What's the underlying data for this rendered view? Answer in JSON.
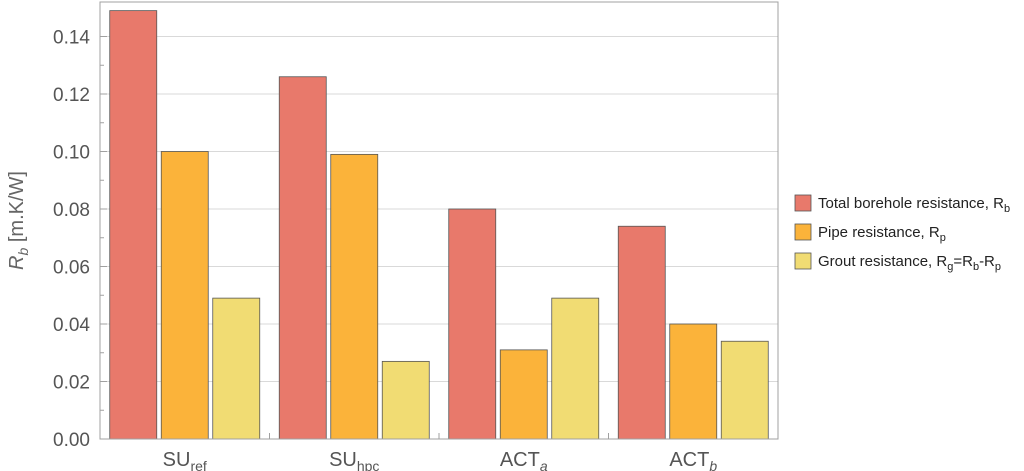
{
  "chart_data": {
    "type": "bar",
    "title": "",
    "ylabel": {
      "symbol": "R",
      "sub": "b",
      "unit": " [m.K/W]"
    },
    "ylim": [
      0,
      0.152
    ],
    "yticks": [
      "0.00",
      "0.02",
      "0.04",
      "0.06",
      "0.08",
      "0.10",
      "0.12",
      "0.14"
    ],
    "ytick_values": [
      0,
      0.02,
      0.04,
      0.06,
      0.08,
      0.1,
      0.12,
      0.14
    ],
    "grid": true,
    "legend_position": "right",
    "categories": [
      {
        "base": "SU",
        "sub": "ref",
        "italic_sub": false
      },
      {
        "base": "SU",
        "sub": "hpc",
        "italic_sub": false
      },
      {
        "base": "ACT",
        "sub": "a",
        "italic_sub": true
      },
      {
        "base": "ACT",
        "sub": "b",
        "italic_sub": true
      }
    ],
    "series": [
      {
        "name": "Total borehole resistance, R_b",
        "legend": [
          [
            "Total borehole resistance, R",
            ""
          ],
          [
            "b",
            "sub"
          ]
        ],
        "color": "#E8796B",
        "values": [
          0.149,
          0.126,
          0.08,
          0.074
        ]
      },
      {
        "name": "Pipe resistance, R_p",
        "legend": [
          [
            "Pipe resistance, R",
            ""
          ],
          [
            "p",
            "sub"
          ]
        ],
        "color": "#FBB33A",
        "values": [
          0.1,
          0.099,
          0.031,
          0.04
        ]
      },
      {
        "name": "Grout resistance, R_g=R_b-R_p",
        "legend": [
          [
            "Grout resistance, R",
            ""
          ],
          [
            "g",
            "sub"
          ],
          [
            "=R",
            ""
          ],
          [
            "b",
            "sub"
          ],
          [
            "-R",
            ""
          ],
          [
            "p",
            "sub"
          ]
        ],
        "color": "#F1DC73",
        "values": [
          0.049,
          0.027,
          0.049,
          0.034
        ]
      }
    ]
  }
}
